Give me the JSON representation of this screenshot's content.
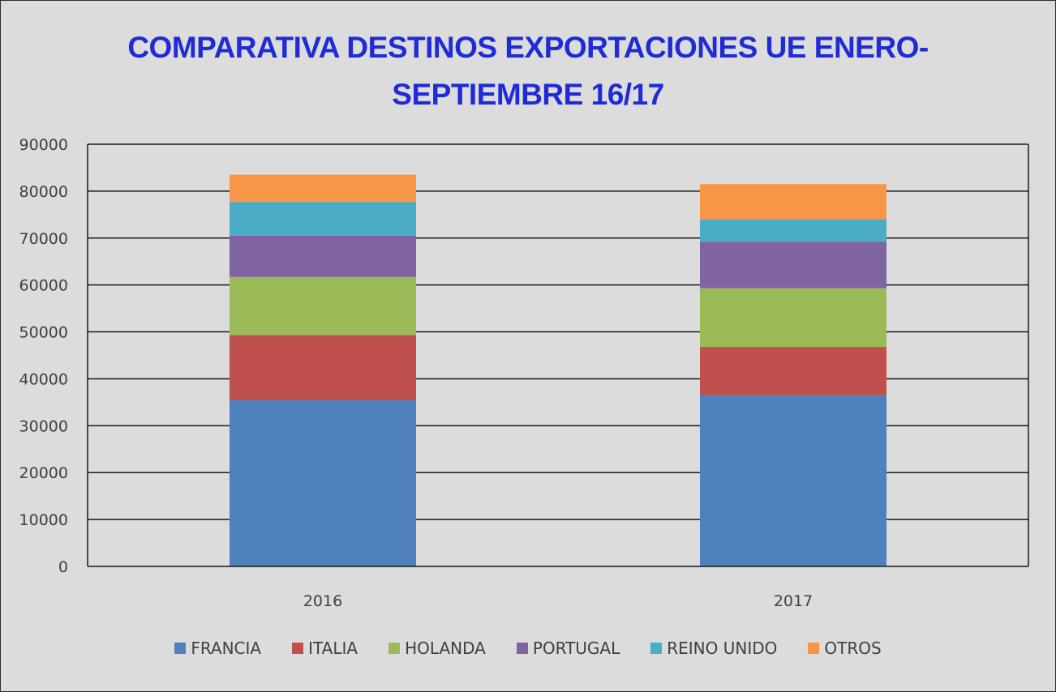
{
  "chart_data": {
    "type": "bar",
    "stacked": true,
    "title": "COMPARATIVA DESTINOS EXPORTACIONES UE ENERO-SEPTIEMBRE 16/17",
    "title_lines": [
      "COMPARATIVA  DESTINOS EXPORTACIONES UE ENERO-",
      "SEPTIEMBRE  16/17"
    ],
    "categories": [
      "2016",
      "2017"
    ],
    "series": [
      {
        "name": "FRANCIA",
        "color": "#4f81bd",
        "values": [
          35500,
          36500
        ]
      },
      {
        "name": "ITALIA",
        "color": "#c0504d",
        "values": [
          13800,
          10300
        ]
      },
      {
        "name": "HOLANDA",
        "color": "#9bbb59",
        "values": [
          12400,
          12500
        ]
      },
      {
        "name": "PORTUGAL",
        "color": "#8064a2",
        "values": [
          8800,
          9900
        ]
      },
      {
        "name": "REINO UNIDO",
        "color": "#4bacc6",
        "values": [
          7200,
          4800
        ]
      },
      {
        "name": "OTROS",
        "color": "#f79646",
        "values": [
          5800,
          7500
        ]
      }
    ],
    "ylim": [
      0,
      90000
    ],
    "yticks": [
      "0",
      "10000",
      "20000",
      "30000",
      "40000",
      "50000",
      "60000",
      "70000",
      "80000",
      "90000"
    ],
    "grid": true,
    "legend_position": "bottom"
  }
}
